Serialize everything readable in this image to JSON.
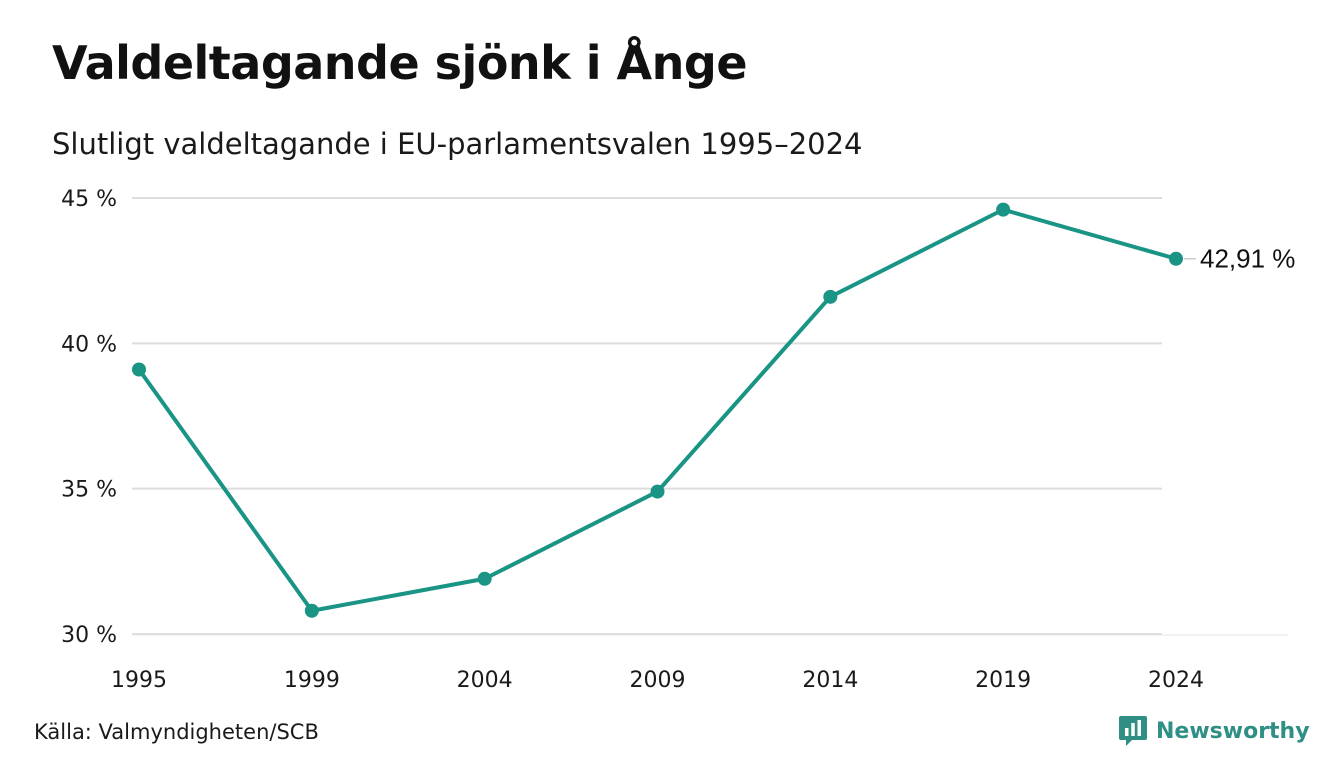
{
  "header": {
    "title": "Valdeltagande sjönk i Ånge",
    "subtitle": "Slutligt valdeltagande i EU-parlamentsvalen 1995–2024"
  },
  "footer": {
    "source": "Källa: Valmyndigheten/SCB",
    "brand": "Newsworthy",
    "brand_icon": "bar-chart-speech-bubble-icon"
  },
  "colors": {
    "line": "#1a9485",
    "grid": "#dddddd",
    "brand": "#2f8f84"
  },
  "chart_data": {
    "type": "line",
    "title": "Valdeltagande sjönk i Ånge",
    "subtitle": "Slutligt valdeltagande i EU-parlamentsvalen 1995–2024",
    "categories": [
      "1995",
      "1999",
      "2004",
      "2009",
      "2014",
      "2019",
      "2024"
    ],
    "series": [
      {
        "values": [
          39.1,
          30.8,
          31.9,
          34.9,
          41.6,
          44.6,
          42.91
        ]
      }
    ],
    "ylim": [
      30,
      45
    ],
    "yticks": [
      30,
      35,
      40,
      45
    ],
    "ytick_labels": [
      "30 %",
      "35 %",
      "40 %",
      "45 %"
    ],
    "end_label": "42,91 %",
    "grid": true,
    "xlabel": "",
    "ylabel": ""
  }
}
